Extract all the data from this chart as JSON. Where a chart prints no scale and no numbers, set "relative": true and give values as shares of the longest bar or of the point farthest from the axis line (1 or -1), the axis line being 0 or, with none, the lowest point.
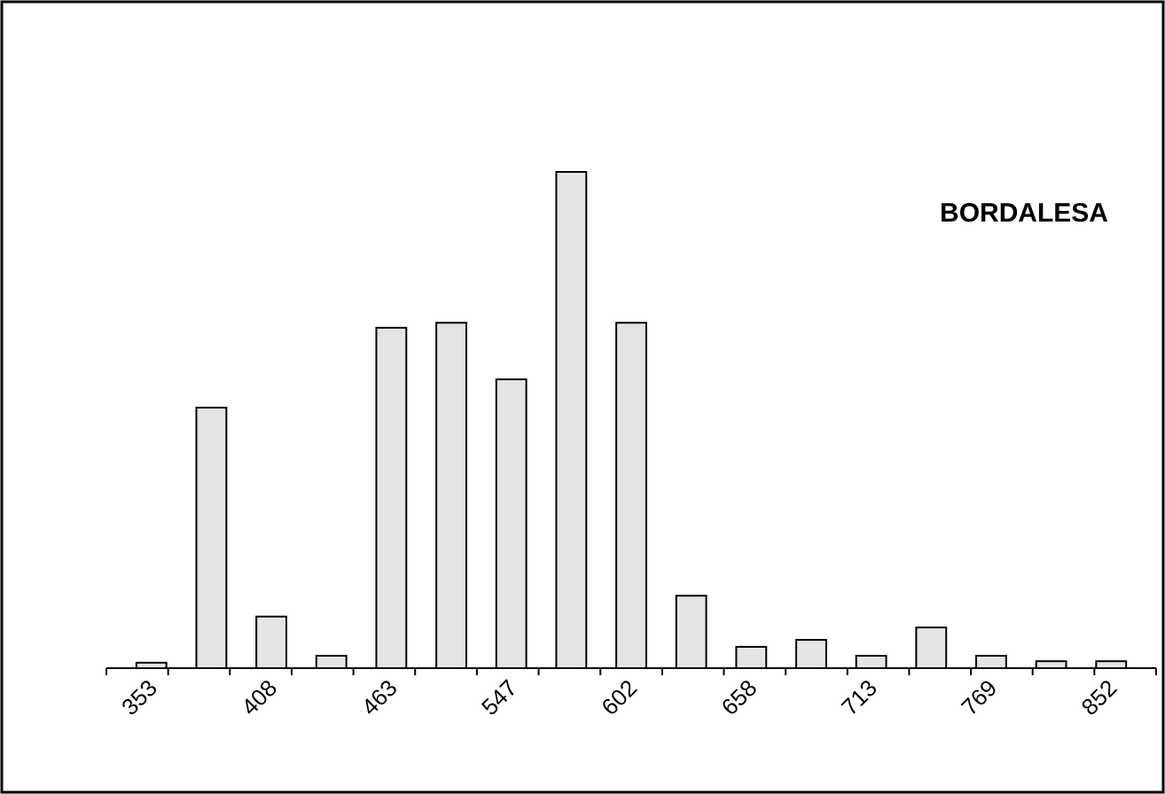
{
  "chart_data": {
    "type": "bar",
    "title": "BORDALESA",
    "relative": true,
    "color": "#e4e4e4",
    "categories": [
      "353",
      null,
      "408",
      null,
      "463",
      null,
      "547",
      null,
      "602",
      null,
      "658",
      null,
      "713",
      null,
      "769",
      null,
      "852"
    ],
    "values": [
      0.011,
      0.525,
      0.104,
      0.025,
      0.686,
      0.696,
      0.582,
      1,
      0.696,
      0.146,
      0.043,
      0.057,
      0.025,
      0.082,
      0.025,
      0.014,
      0.014
    ]
  }
}
